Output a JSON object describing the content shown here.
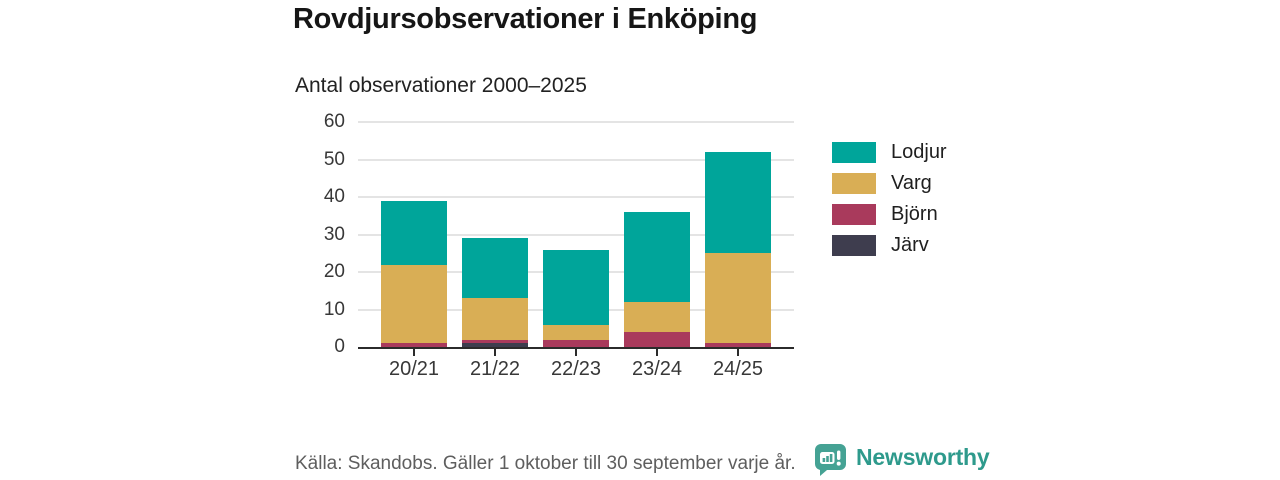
{
  "header": {
    "title": "Rovdjursobservationer i Enköping",
    "subtitle": "Antal observationer 2000–2025"
  },
  "chart_data": {
    "type": "bar",
    "stacked": true,
    "title": "Rovdjursobservationer i Enköping",
    "subtitle": "Antal observationer 2000–2025",
    "categories": [
      "20/21",
      "21/22",
      "22/23",
      "23/24",
      "24/25"
    ],
    "series": [
      {
        "name": "Lodjur",
        "color": "#00a59a",
        "values": [
          17,
          16,
          20,
          24,
          27
        ]
      },
      {
        "name": "Varg",
        "color": "#d9ae55",
        "values": [
          21,
          11,
          4,
          8,
          24
        ]
      },
      {
        "name": "Björn",
        "color": "#a93a5c",
        "values": [
          1,
          1,
          2,
          4,
          1
        ]
      },
      {
        "name": "Järv",
        "color": "#3e3d4e",
        "values": [
          0,
          1,
          0,
          0,
          0
        ]
      }
    ],
    "ylim": [
      0,
      60
    ],
    "yticks": [
      0,
      10,
      20,
      30,
      40,
      50,
      60
    ],
    "grid": true,
    "legend_position": "right"
  },
  "footer": {
    "source": "Källa: Skandobs. Gäller 1 oktober till 30 september varje år.",
    "brand": "Newsworthy",
    "brand_color": "#2e9a8c",
    "logo_color": "#45a294"
  }
}
